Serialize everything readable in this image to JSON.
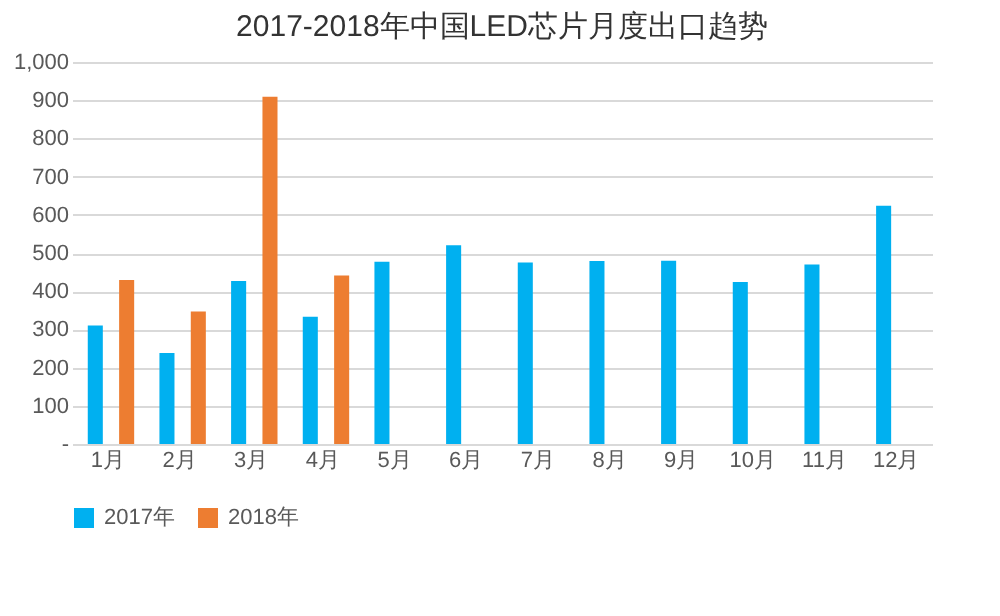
{
  "chart_data": {
    "type": "bar",
    "title": "2017-2018年中国LED芯片月度出口趋势",
    "categories": [
      "1月",
      "2月",
      "3月",
      "4月",
      "5月",
      "6月",
      "7月",
      "8月",
      "9月",
      "10月",
      "11月",
      "12月"
    ],
    "series": [
      {
        "name": "2017年",
        "color": "#00b0f0",
        "values": [
          310,
          238,
          427,
          333,
          477,
          520,
          475,
          479,
          480,
          424,
          470,
          624
        ]
      },
      {
        "name": "2018年",
        "color": "#ed7d31",
        "values": [
          429,
          347,
          909,
          441,
          null,
          null,
          null,
          null,
          null,
          null,
          null,
          null
        ]
      }
    ],
    "ylim": [
      0,
      1000
    ],
    "yticks": [
      {
        "value": 0,
        "label": "-"
      },
      100,
      200,
      300,
      400,
      500,
      600,
      700,
      800,
      900,
      {
        "value": 1000,
        "label": "1,000"
      }
    ],
    "grid": "y",
    "legend": "bottom"
  }
}
